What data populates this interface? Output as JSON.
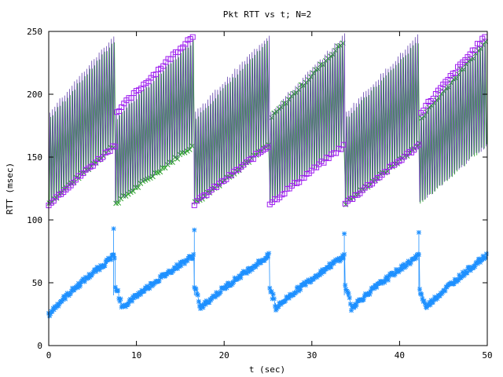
{
  "chart_data": {
    "type": "scatter",
    "title": "Pkt RTT vs t; N=2",
    "xlabel": "t (sec)",
    "ylabel": "RTT (msec)",
    "xlim": [
      0,
      50
    ],
    "ylim": [
      0,
      250
    ],
    "x_ticks": [
      0,
      10,
      20,
      30,
      40,
      50
    ],
    "y_ticks": [
      0,
      50,
      100,
      150,
      200,
      250
    ],
    "grid": false,
    "legend": "none",
    "cycle_starts": [
      0.0,
      7.6,
      16.6,
      25.2,
      33.8,
      42.3,
      50.0
    ],
    "series": [
      {
        "marker": "square",
        "color": "#a020f0",
        "line_color": "#6a4bb0",
        "low_start": 113,
        "low_end": 160,
        "high_start": 185,
        "high_end": 248
      },
      {
        "marker": "x",
        "color": "#2aa02a",
        "line_color": "#2aa02a",
        "low_start": 113,
        "low_end": 160,
        "high_start": 180,
        "high_end": 243
      },
      {
        "marker": "asterisk",
        "color": "#1e90ff",
        "line_color": "#1e90ff",
        "start": 24,
        "end": 72,
        "peaks": [
          {
            "x": 7.4,
            "y": 93
          },
          {
            "x": 16.6,
            "y": 92
          },
          {
            "x": 33.7,
            "y": 89
          },
          {
            "x": 42.2,
            "y": 90
          }
        ]
      }
    ]
  }
}
